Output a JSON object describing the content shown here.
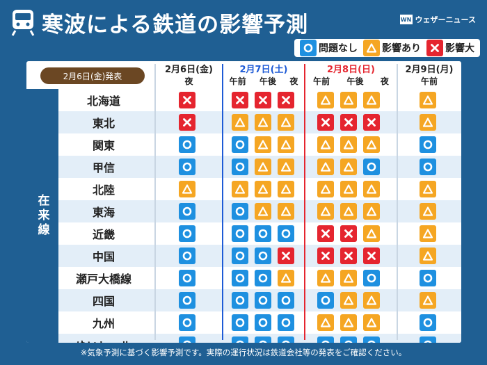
{
  "header": {
    "title": "寒波による鉄道の影響予測",
    "brand": "ウェザーニュース",
    "brand_mark": "WN",
    "icon": "train-icon"
  },
  "legend": {
    "ok_label": "問題なし",
    "warn_label": "影響あり",
    "bad_label": "影響大"
  },
  "table": {
    "issued": "2月6日(金)発表",
    "section_label": "在来線",
    "days": [
      {
        "label": "2月6日(金)",
        "color": "#222222",
        "slots": [
          "夜"
        ]
      },
      {
        "label": "2月7日(土)",
        "color": "#1e5bd6",
        "slots": [
          "午前",
          "午後",
          "夜"
        ]
      },
      {
        "label": "2月8日(日)",
        "color": "#e5252f",
        "slots": [
          "午前",
          "午後",
          "夜"
        ]
      },
      {
        "label": "2月9日(月)",
        "color": "#222222",
        "slots": [
          "午前"
        ]
      }
    ],
    "rows": [
      {
        "name": "北海道",
        "values": [
          "bad",
          "bad",
          "bad",
          "bad",
          "warn",
          "warn",
          "warn",
          "warn"
        ]
      },
      {
        "name": "東北",
        "values": [
          "bad",
          "warn",
          "warn",
          "warn",
          "bad",
          "bad",
          "bad",
          "warn"
        ]
      },
      {
        "name": "関東",
        "values": [
          "ok",
          "ok",
          "warn",
          "warn",
          "warn",
          "warn",
          "warn",
          "ok"
        ]
      },
      {
        "name": "甲信",
        "values": [
          "ok",
          "ok",
          "warn",
          "warn",
          "warn",
          "warn",
          "ok",
          "ok"
        ]
      },
      {
        "name": "北陸",
        "values": [
          "warn",
          "warn",
          "warn",
          "warn",
          "warn",
          "warn",
          "warn",
          "warn"
        ]
      },
      {
        "name": "東海",
        "values": [
          "ok",
          "ok",
          "warn",
          "warn",
          "warn",
          "warn",
          "warn",
          "warn"
        ]
      },
      {
        "name": "近畿",
        "values": [
          "ok",
          "ok",
          "ok",
          "ok",
          "bad",
          "bad",
          "warn",
          "warn"
        ]
      },
      {
        "name": "中国",
        "values": [
          "ok",
          "ok",
          "ok",
          "bad",
          "bad",
          "bad",
          "bad",
          "warn"
        ]
      },
      {
        "name": "瀬戸大橋線",
        "values": [
          "ok",
          "ok",
          "ok",
          "warn",
          "warn",
          "warn",
          "ok",
          "ok"
        ]
      },
      {
        "name": "四国",
        "values": [
          "ok",
          "ok",
          "ok",
          "ok",
          "ok",
          "warn",
          "warn",
          "warn"
        ]
      },
      {
        "name": "九州",
        "values": [
          "ok",
          "ok",
          "ok",
          "ok",
          "warn",
          "warn",
          "warn",
          "ok"
        ]
      },
      {
        "name": "ゆいレール",
        "values": [
          "ok",
          "ok",
          "ok",
          "ok",
          "ok",
          "ok",
          "ok",
          "ok"
        ]
      }
    ]
  },
  "footnote": "※気象予測に基づく影響予測です。実際の運行状況は鉄道会社等の発表をご確認ください。",
  "colors": {
    "background": "#1f5f93",
    "ok": "#1e90e0",
    "warn": "#f5a623",
    "bad": "#e5252f",
    "badge": "#6b4723",
    "row_alt": "#e3eef8"
  }
}
